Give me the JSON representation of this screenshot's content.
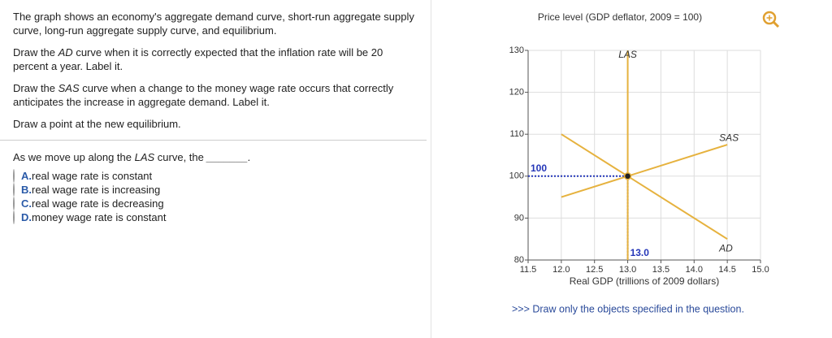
{
  "question": {
    "paragraphs": [
      [
        "The graph shows an economy's aggregate demand curve, short-run aggregate supply curve, long-run aggregate supply curve, and equilibrium."
      ],
      [
        "Draw the ",
        "AD",
        " curve when it is correctly expected that the inflation rate will be 20 percent a year. Label it."
      ],
      [
        "Draw the ",
        "SAS",
        " curve when a change to the money wage rate occurs that correctly anticipates the increase in aggregate demand. Label it."
      ],
      [
        "Draw a point at the new equilibrium."
      ]
    ],
    "prompt": [
      "As we move up along the ",
      "LAS",
      " curve, the ",
      "_______."
    ],
    "options": [
      {
        "letter": "A.",
        "text": "real wage rate is constant"
      },
      {
        "letter": "B.",
        "text": "real wage rate is increasing"
      },
      {
        "letter": "C.",
        "text": "real wage rate is decreasing"
      },
      {
        "letter": "D.",
        "text": "money wage rate is constant"
      }
    ]
  },
  "graph": {
    "y_label": "Price level (GDP deflator, 2009 = 100)",
    "x_label": "Real GDP (trillions of 2009 dollars)",
    "xlim": [
      11.5,
      15.0
    ],
    "ylim": [
      80,
      130
    ],
    "xticks": [
      11.5,
      {
        "value": 12,
        "label": "12.0"
      },
      12.5,
      {
        "value": 13,
        "label": "13.0"
      },
      13.5,
      {
        "value": 14,
        "label": "14.0"
      },
      14.5,
      {
        "value": 15,
        "label": "15.0"
      }
    ],
    "yticks": [
      80,
      90,
      100,
      110,
      120,
      130
    ],
    "grid": true,
    "series": [
      {
        "name": "LAS",
        "color": "#e6b23e",
        "x": [
          13,
          13
        ],
        "y": [
          80,
          130
        ]
      },
      {
        "name": "SAS",
        "color": "#e6b23e",
        "x": [
          12,
          14.5
        ],
        "y": [
          95,
          107.5
        ]
      },
      {
        "name": "AD",
        "color": "#e6b23e",
        "x": [
          12,
          14.5
        ],
        "y": [
          110,
          85
        ]
      }
    ],
    "point": {
      "x": 13,
      "y": 100,
      "x_label": "13.0"
    },
    "footer": ">>> Draw only the objects specified in the question."
  }
}
